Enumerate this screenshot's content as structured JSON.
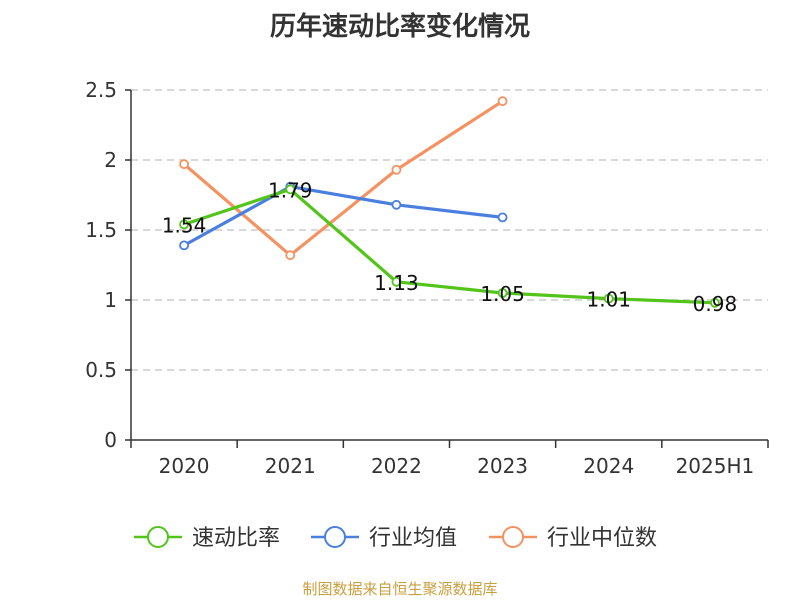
{
  "chart_data": {
    "type": "line",
    "title": "历年速动比率变化情况",
    "categories": [
      "2020",
      "2021",
      "2022",
      "2023",
      "2024",
      "2025H1"
    ],
    "ylim": [
      0,
      2.5
    ],
    "yticks": [
      "0",
      "0.5",
      "1",
      "1.5",
      "2",
      "2.5"
    ],
    "grid": true,
    "legend_position": "bottom",
    "series": [
      {
        "name": "速动比率",
        "color": "#52c41a",
        "values": [
          1.54,
          1.79,
          1.13,
          1.05,
          1.01,
          0.98
        ],
        "labels": [
          "1.54",
          "1.79",
          "1.13",
          "1.05",
          "1.01",
          "0.98"
        ]
      },
      {
        "name": "行业均值",
        "color": "#4a7fe0",
        "values": [
          1.39,
          1.81,
          1.68,
          1.59,
          null,
          null
        ]
      },
      {
        "name": "行业中位数",
        "color": "#f59262",
        "values": [
          1.97,
          1.32,
          1.93,
          2.42,
          null,
          null
        ]
      }
    ]
  },
  "source_note": "制图数据来自恒生聚源数据库"
}
